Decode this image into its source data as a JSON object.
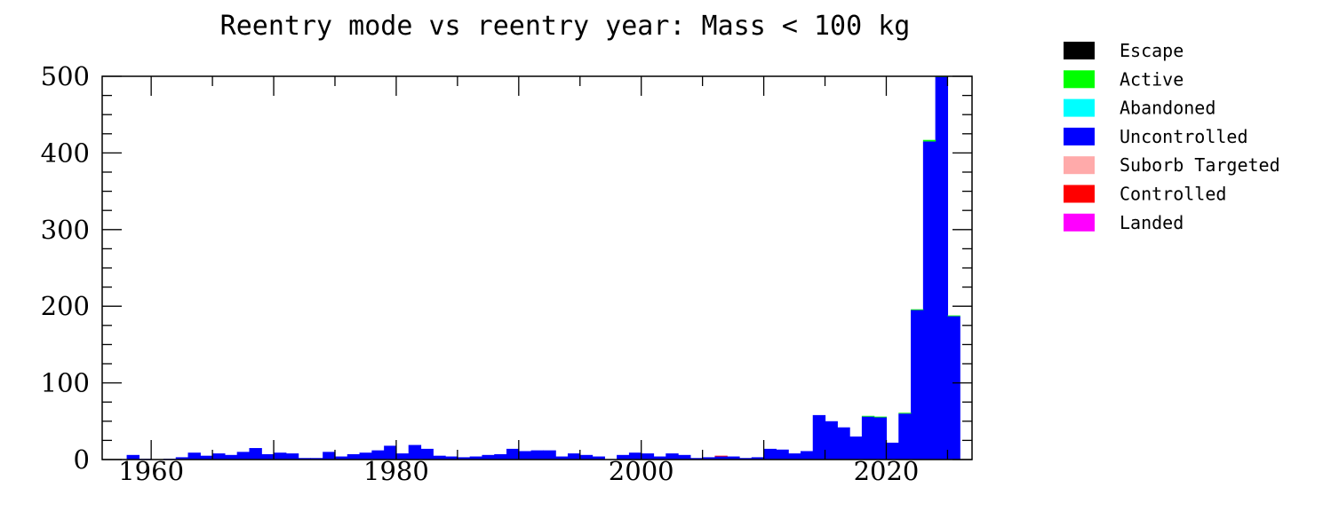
{
  "chart_data": {
    "type": "bar",
    "title": "Reentry mode vs reentry year: Mass < 100 kg",
    "xlabel": "",
    "ylabel": "",
    "xlim": [
      1956,
      2027
    ],
    "ylim": [
      0,
      500
    ],
    "x_ticks": [
      "1960",
      "1980",
      "2000",
      "2020"
    ],
    "y_ticks": [
      "0",
      "100",
      "200",
      "300",
      "400",
      "500"
    ],
    "stacked": true,
    "legend_position": "outside-right",
    "legend": [
      {
        "name": "Escape",
        "color": "#000000"
      },
      {
        "name": "Active",
        "color": "#00ff00"
      },
      {
        "name": "Abandoned",
        "color": "#00ffff"
      },
      {
        "name": "Uncontrolled",
        "color": "#0000ff"
      },
      {
        "name": "Suborb Targeted",
        "color": "#ffaaaa"
      },
      {
        "name": "Controlled",
        "color": "#ff0000"
      },
      {
        "name": "Landed",
        "color": "#ff00ff"
      }
    ],
    "x": [
      1957,
      1958,
      1959,
      1960,
      1961,
      1962,
      1963,
      1964,
      1965,
      1966,
      1967,
      1968,
      1969,
      1970,
      1971,
      1972,
      1973,
      1974,
      1975,
      1976,
      1977,
      1978,
      1979,
      1980,
      1981,
      1982,
      1983,
      1984,
      1985,
      1986,
      1987,
      1988,
      1989,
      1990,
      1991,
      1992,
      1993,
      1994,
      1995,
      1996,
      1997,
      1998,
      1999,
      2000,
      2001,
      2002,
      2003,
      2004,
      2005,
      2006,
      2007,
      2008,
      2009,
      2010,
      2011,
      2012,
      2013,
      2014,
      2015,
      2016,
      2017,
      2018,
      2019,
      2020,
      2021,
      2022,
      2023,
      2024,
      2025
    ],
    "series": [
      {
        "name": "Uncontrolled",
        "color": "#0000ff",
        "values": [
          0,
          6,
          1,
          0,
          1,
          3,
          9,
          5,
          8,
          6,
          10,
          15,
          7,
          9,
          8,
          2,
          2,
          10,
          4,
          7,
          9,
          12,
          18,
          8,
          19,
          14,
          5,
          4,
          3,
          4,
          6,
          7,
          14,
          11,
          12,
          12,
          4,
          8,
          6,
          4,
          0,
          6,
          9,
          8,
          4,
          8,
          6,
          2,
          3,
          4,
          4,
          2,
          3,
          14,
          13,
          8,
          11,
          58,
          50,
          42,
          30,
          56,
          55,
          22,
          60,
          195,
          415,
          500,
          187
        ]
      },
      {
        "name": "Active",
        "color": "#00ff00",
        "values": [
          0,
          0,
          0,
          0,
          0,
          0,
          0,
          0,
          0,
          0,
          0,
          0,
          0,
          0,
          0,
          0,
          0,
          0,
          0,
          0,
          0,
          0,
          0,
          0,
          0,
          0,
          0,
          0,
          0,
          0,
          0,
          0,
          0,
          0,
          0,
          0,
          0,
          0,
          0,
          0,
          0,
          0,
          0,
          0,
          0,
          0,
          0,
          0,
          0,
          0,
          0,
          0,
          0,
          0,
          0,
          0,
          0,
          0,
          0,
          0,
          0,
          1,
          1,
          0,
          1,
          1,
          2,
          1,
          1
        ]
      },
      {
        "name": "Controlled",
        "color": "#ff0000",
        "values": [
          0,
          0,
          0,
          0,
          0,
          0,
          0,
          0,
          0,
          0,
          0,
          0,
          0,
          0,
          0,
          0,
          0,
          0,
          0,
          0,
          0,
          0,
          0,
          0,
          0,
          0,
          0,
          0,
          0,
          0,
          0,
          0,
          0,
          0,
          0,
          0,
          0,
          0,
          0,
          0,
          0,
          0,
          0,
          0,
          0,
          0,
          0,
          0,
          0,
          1,
          0,
          0,
          0,
          0,
          0,
          0,
          0,
          0,
          0,
          0,
          0,
          0,
          0,
          0,
          0,
          0,
          0,
          0,
          0
        ]
      }
    ]
  }
}
